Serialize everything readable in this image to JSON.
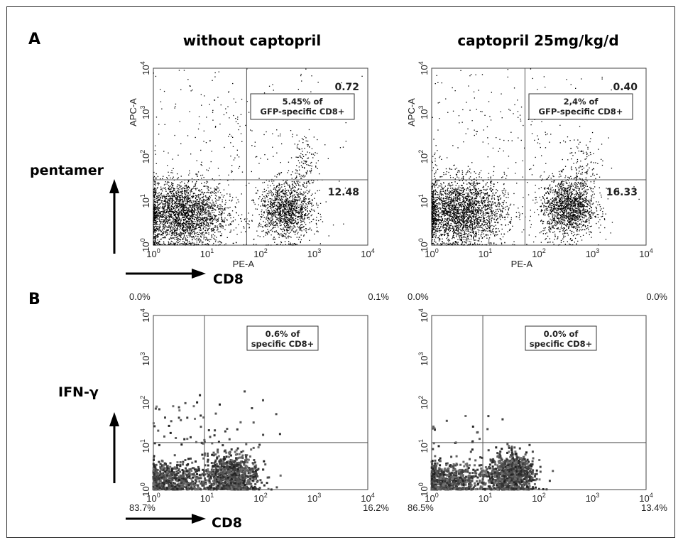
{
  "labels": {
    "panel_a": "A",
    "panel_b": "B",
    "col_left": "without captopril",
    "col_right": "captopril 25mg/kg/d",
    "y_marker_a": "pentamer",
    "y_marker_b": "IFN-γ",
    "x_marker": "CD8"
  },
  "chart_data": [
    {
      "type": "scatter",
      "panel": "A",
      "title": "without captopril",
      "xlabel": "PE-A",
      "ylabel": "APC-A",
      "scale": "log",
      "xlim": [
        1,
        10000
      ],
      "ylim": [
        1,
        10000
      ],
      "ticks": [
        "10^0",
        "10^1",
        "10^2",
        "10^3",
        "10^4"
      ],
      "gates": {
        "x": 55,
        "y": 30
      },
      "quadrant_values": {
        "upper_right": "0.72",
        "lower_right": "12.48"
      },
      "annotation": [
        "5.45% of",
        "GFP-specific CD8+"
      ],
      "populations": [
        {
          "name": "",
          "center": [
            3.5,
            5
          ],
          "spread_decades": [
            0.42,
            0.38
          ],
          "points": 2600
        },
        {
          "name": "",
          "center": [
            300,
            6
          ],
          "spread_decades": [
            0.25,
            0.33
          ],
          "points": 1300
        },
        {
          "name": "",
          "center": [
            650,
            55
          ],
          "spread_decades": [
            0.12,
            0.45
          ],
          "points": 150
        },
        {
          "name": "",
          "center": [
            30,
            300
          ],
          "spread_decades": [
            1.0,
            1.0
          ],
          "points": 260
        }
      ]
    },
    {
      "type": "scatter",
      "panel": "A",
      "title": "captopril 25mg/kg/d",
      "xlabel": "PE-A",
      "ylabel": "APC-A",
      "scale": "log",
      "xlim": [
        1,
        10000
      ],
      "ylim": [
        1,
        10000
      ],
      "ticks": [
        "10^0",
        "10^1",
        "10^2",
        "10^3",
        "10^4"
      ],
      "gates": {
        "x": 55,
        "y": 30
      },
      "quadrant_values": {
        "upper_right": "0.40",
        "lower_right": "16.33"
      },
      "annotation": [
        "2,4% of",
        "GFP-specific CD8+"
      ],
      "populations": [
        {
          "name": "",
          "center": [
            3.5,
            5.5
          ],
          "spread_decades": [
            0.42,
            0.38
          ],
          "points": 2600
        },
        {
          "name": "",
          "center": [
            350,
            7
          ],
          "spread_decades": [
            0.25,
            0.33
          ],
          "points": 1500
        },
        {
          "name": "",
          "center": [
            700,
            40
          ],
          "spread_decades": [
            0.15,
            0.4
          ],
          "points": 130
        },
        {
          "name": "",
          "center": [
            30,
            300
          ],
          "spread_decades": [
            1.0,
            1.0
          ],
          "points": 240
        }
      ]
    },
    {
      "type": "scatter",
      "panel": "B",
      "title": "without captopril",
      "xlabel": "CD8",
      "ylabel": "IFN-γ",
      "scale": "log",
      "xlim": [
        1,
        10000
      ],
      "ylim": [
        1,
        10000
      ],
      "ticks": [
        "10^0",
        "10^1",
        "10^2",
        "10^3",
        "10^4"
      ],
      "gates": {
        "x": 9,
        "y": 12
      },
      "quadrant_values": {
        "upper_left": "0.0%",
        "upper_right": "0.1%",
        "lower_left": "83.7%",
        "lower_right": "16.2%"
      },
      "annotation": [
        "0.6% of",
        "specific CD8+"
      ],
      "populations": [
        {
          "name": "",
          "center": [
            2,
            1.6
          ],
          "spread_decades": [
            0.35,
            0.2
          ],
          "points": 700
        },
        {
          "name": "",
          "center": [
            30,
            2
          ],
          "spread_decades": [
            0.25,
            0.25
          ],
          "points": 900
        },
        {
          "name": "",
          "center": [
            8,
            30
          ],
          "spread_decades": [
            0.6,
            0.4
          ],
          "points": 60
        }
      ]
    },
    {
      "type": "scatter",
      "panel": "B",
      "title": "captopril 25mg/kg/d",
      "xlabel": "CD8",
      "ylabel": "IFN-γ",
      "scale": "log",
      "xlim": [
        1,
        10000
      ],
      "ylim": [
        1,
        10000
      ],
      "ticks": [
        "10^0",
        "10^1",
        "10^2",
        "10^3",
        "10^4"
      ],
      "gates": {
        "x": 9,
        "y": 12
      },
      "quadrant_values": {
        "upper_left": "0.0%",
        "upper_right": "0.0%",
        "lower_left": "86.5%",
        "lower_right": "13.4%"
      },
      "annotation": [
        "0.0% of",
        "specific CD8+"
      ],
      "populations": [
        {
          "name": "",
          "center": [
            2,
            1.6
          ],
          "spread_decades": [
            0.35,
            0.2
          ],
          "points": 700
        },
        {
          "name": "",
          "center": [
            30,
            2.2
          ],
          "spread_decades": [
            0.22,
            0.25
          ],
          "points": 900
        },
        {
          "name": "",
          "center": [
            4,
            15
          ],
          "spread_decades": [
            0.5,
            0.3
          ],
          "points": 25
        }
      ]
    }
  ]
}
